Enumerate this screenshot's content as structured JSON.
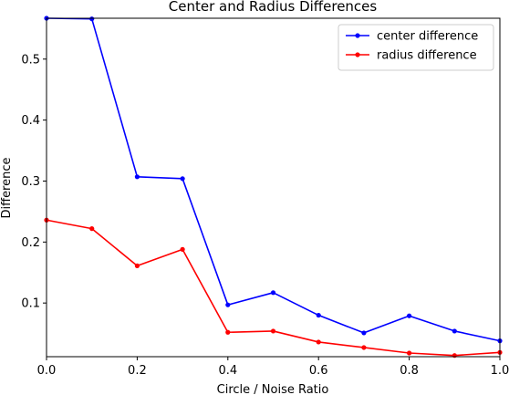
{
  "chart_data": {
    "type": "line",
    "title": "Center and Radius Differences",
    "xlabel": "Circle / Noise Ratio",
    "ylabel": "Difference",
    "xlim": [
      0.0,
      1.0
    ],
    "ylim": [
      0.012,
      0.567
    ],
    "x_ticks": [
      0.0,
      0.2,
      0.4,
      0.6,
      0.8,
      1.0
    ],
    "x_tick_labels": [
      "0.0",
      "0.2",
      "0.4",
      "0.6",
      "0.8",
      "1.0"
    ],
    "y_ticks": [
      0.1,
      0.2,
      0.3,
      0.4,
      0.5
    ],
    "y_tick_labels": [
      "0.1",
      "0.2",
      "0.3",
      "0.4",
      "0.5"
    ],
    "grid": false,
    "legend_position": "top-right",
    "x": [
      0.0,
      0.1,
      0.2,
      0.3,
      0.4,
      0.5,
      0.6,
      0.7,
      0.8,
      0.9,
      1.0
    ],
    "series": [
      {
        "name": "center difference",
        "color": "#0000ff",
        "marker": "dot",
        "values": [
          0.567,
          0.566,
          0.307,
          0.304,
          0.097,
          0.117,
          0.08,
          0.051,
          0.079,
          0.054,
          0.038
        ]
      },
      {
        "name": "radius difference",
        "color": "#ff0000",
        "marker": "dot",
        "values": [
          0.236,
          0.222,
          0.161,
          0.188,
          0.052,
          0.054,
          0.036,
          0.027,
          0.018,
          0.014,
          0.019
        ]
      }
    ]
  }
}
